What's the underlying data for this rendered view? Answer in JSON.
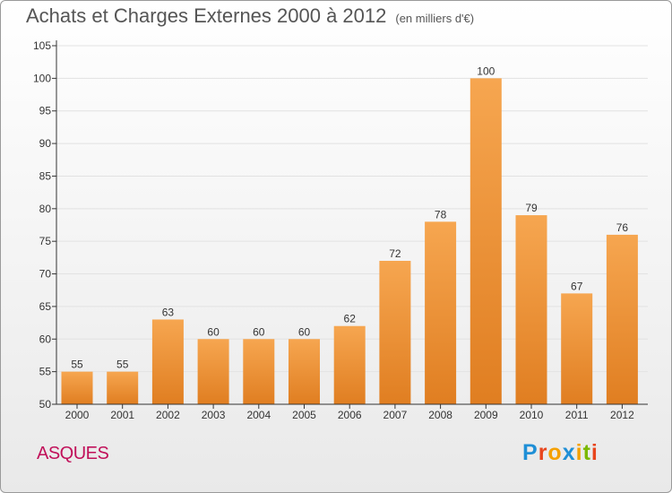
{
  "title": "Achats et Charges Externes 2000 à 2012",
  "unit": "(en milliers d'€)",
  "commune": "ASQUES",
  "brand": {
    "text": "Proxiti",
    "letter_colors": [
      "#1f8fd6",
      "#e8451c",
      "#f5a000",
      "#1f8fd6",
      "#f5a000",
      "#7ab800",
      "#e8451c"
    ]
  },
  "colors": {
    "bar_light": "#f6a650",
    "bar_dark": "#e07e21",
    "axis": "#333333",
    "grid": "#e2e2e2",
    "title": "#555555",
    "commune": "#c1115a"
  },
  "chart_data": {
    "type": "bar",
    "categories": [
      "2000",
      "2001",
      "2002",
      "2003",
      "2004",
      "2005",
      "2006",
      "2007",
      "2008",
      "2009",
      "2010",
      "2011",
      "2012"
    ],
    "values": [
      55,
      55,
      63,
      60,
      60,
      60,
      62,
      72,
      78,
      100,
      79,
      67,
      76
    ],
    "y_ticks": [
      50,
      55,
      60,
      65,
      70,
      75,
      80,
      85,
      90,
      95,
      100,
      105
    ],
    "ylim": [
      50,
      105
    ],
    "grid": true,
    "data_labels": true
  }
}
